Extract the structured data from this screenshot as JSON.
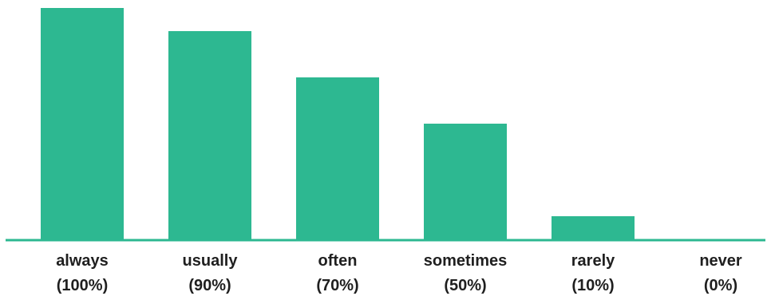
{
  "chart_data": {
    "type": "bar",
    "categories": [
      "always",
      "usually",
      "often",
      "sometimes",
      "rarely",
      "never"
    ],
    "category_sublabels": [
      "(100%)",
      "(90%)",
      "(70%)",
      "(50%)",
      "(10%)",
      "(0%)"
    ],
    "values": [
      100,
      90,
      70,
      50,
      10,
      0
    ],
    "title": "",
    "xlabel": "",
    "ylabel": "",
    "ylim": [
      0,
      100
    ],
    "grid": false,
    "legend": "none",
    "colors": {
      "bar": "#2db891",
      "baseline": "#2db891",
      "text": "#1f1f1f"
    }
  }
}
